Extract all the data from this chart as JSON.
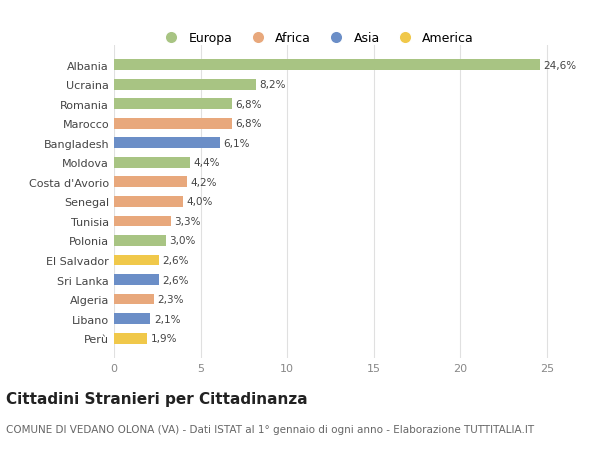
{
  "countries": [
    "Albania",
    "Ucraina",
    "Romania",
    "Marocco",
    "Bangladesh",
    "Moldova",
    "Costa d'Avorio",
    "Senegal",
    "Tunisia",
    "Polonia",
    "El Salvador",
    "Sri Lanka",
    "Algeria",
    "Libano",
    "Perù"
  ],
  "values": [
    24.6,
    8.2,
    6.8,
    6.8,
    6.1,
    4.4,
    4.2,
    4.0,
    3.3,
    3.0,
    2.6,
    2.6,
    2.3,
    2.1,
    1.9
  ],
  "labels": [
    "24,6%",
    "8,2%",
    "6,8%",
    "6,8%",
    "6,1%",
    "4,4%",
    "4,2%",
    "4,0%",
    "3,3%",
    "3,0%",
    "2,6%",
    "2,6%",
    "2,3%",
    "2,1%",
    "1,9%"
  ],
  "continents": [
    "Europa",
    "Europa",
    "Europa",
    "Africa",
    "Asia",
    "Europa",
    "Africa",
    "Africa",
    "Africa",
    "Europa",
    "America",
    "Asia",
    "Africa",
    "Asia",
    "America"
  ],
  "colors": {
    "Europa": "#a8c483",
    "Africa": "#e8a87c",
    "Asia": "#6b8ec7",
    "America": "#f0c84a"
  },
  "xlim": [
    0,
    26
  ],
  "xticks": [
    0,
    5,
    10,
    15,
    20,
    25
  ],
  "background_color": "#ffffff",
  "grid_color": "#e0e0e0",
  "title": "Cittadini Stranieri per Cittadinanza",
  "subtitle": "COMUNE DI VEDANO OLONA (VA) - Dati ISTAT al 1° gennaio di ogni anno - Elaborazione TUTTITALIA.IT",
  "bar_height": 0.55,
  "title_fontsize": 11,
  "subtitle_fontsize": 7.5,
  "label_fontsize": 7.5,
  "ytick_fontsize": 8,
  "xtick_fontsize": 8,
  "legend_fontsize": 9
}
